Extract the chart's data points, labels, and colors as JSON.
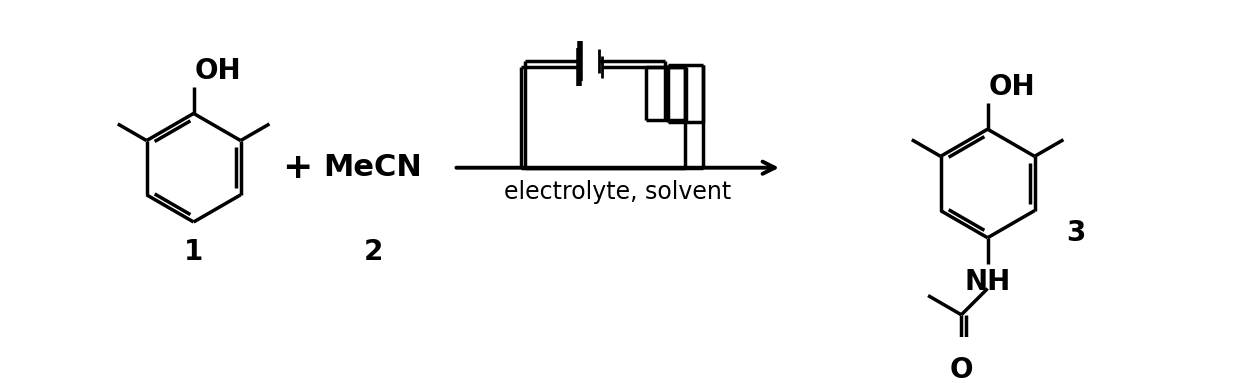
{
  "bg_color": "#ffffff",
  "line_color": "#000000",
  "lw": 2.5,
  "lw_bold": 4.0,
  "lw_thin": 2.0,
  "font_size_label": 20,
  "font_size_text": 17,
  "font_size_large": 22,
  "font_size_number": 20,
  "label1": "1",
  "label2": "2",
  "label3": "3",
  "text_mecn": "MeCN",
  "text_plus": "+",
  "text_condition": "electrolyte, solvent",
  "text_oh": "OH",
  "text_nh": "NH",
  "text_o": "O"
}
